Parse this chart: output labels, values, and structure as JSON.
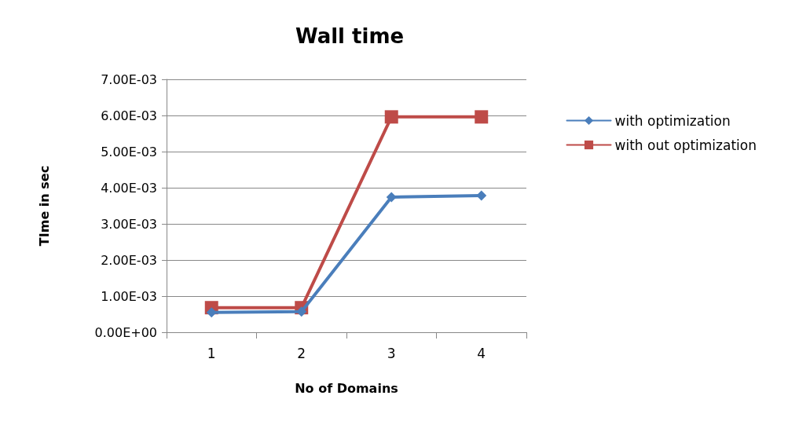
{
  "chart_data": {
    "type": "line",
    "title": "Wall time",
    "xlabel": "No of Domains",
    "ylabel": "TIme in sec",
    "categories": [
      "1",
      "2",
      "3",
      "4"
    ],
    "series": [
      {
        "name": "with optimization",
        "color": "#4a7ebb",
        "marker": "diamond",
        "values": [
          0.00055,
          0.00057,
          0.00374,
          0.00378
        ]
      },
      {
        "name": "with out optimization",
        "color": "#be4b48",
        "marker": "square",
        "values": [
          0.00068,
          0.00068,
          0.00596,
          0.00596
        ]
      }
    ],
    "ylim": [
      0,
      0.007
    ],
    "yticks": [
      {
        "value": 0,
        "label": "0.00E+00"
      },
      {
        "value": 0.001,
        "label": "1.00E-03"
      },
      {
        "value": 0.002,
        "label": "2.00E-03"
      },
      {
        "value": 0.003,
        "label": "3.00E-03"
      },
      {
        "value": 0.004,
        "label": "4.00E-03"
      },
      {
        "value": 0.005,
        "label": "5.00E-03"
      },
      {
        "value": 0.006,
        "label": "6.00E-03"
      },
      {
        "value": 0.007,
        "label": "7.00E-03"
      }
    ],
    "grid": "y",
    "legend": "right"
  }
}
